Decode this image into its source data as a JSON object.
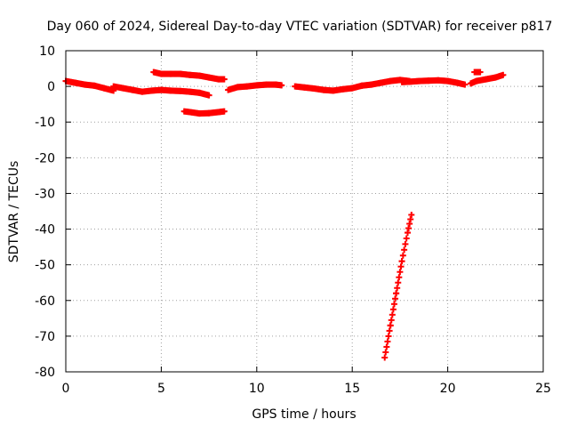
{
  "chart_data": {
    "type": "scatter",
    "title": "Day 060 of 2024, Sidereal Day-to-day VTEC variation (SDTVAR) for receiver p817",
    "xlabel": "GPS time / hours",
    "ylabel": "SDTVAR / TECUs",
    "xlim": [
      0,
      25
    ],
    "ylim": [
      -80,
      10
    ],
    "xticks": [
      "0",
      "5",
      "10",
      "15",
      "20",
      "25"
    ],
    "yticks": [
      "10",
      "0",
      "-10",
      "-20",
      "-30",
      "-40",
      "-50",
      "-60",
      "-70",
      "-80"
    ],
    "grid": true,
    "marker": "plus",
    "color": "#ff0000",
    "segments": [
      {
        "x": [
          0.0,
          0.5,
          1.0,
          1.5,
          2.0,
          2.5
        ],
        "y": [
          1.5,
          1.0,
          0.5,
          0.2,
          -0.5,
          -1.2
        ]
      },
      {
        "x": [
          2.5,
          3.0,
          3.5,
          4.0,
          4.5,
          5.0,
          5.5,
          6.0,
          6.5,
          7.0,
          7.5
        ],
        "y": [
          0.0,
          -0.5,
          -1.0,
          -1.5,
          -1.2,
          -1.0,
          -1.2,
          -1.3,
          -1.5,
          -1.8,
          -2.5
        ]
      },
      {
        "x": [
          4.6,
          5.0,
          5.5,
          6.0,
          6.5,
          7.0,
          7.5,
          8.0,
          8.3
        ],
        "y": [
          4.0,
          3.5,
          3.5,
          3.5,
          3.2,
          3.0,
          2.5,
          2.0,
          2.0
        ]
      },
      {
        "x": [
          6.2,
          6.5,
          7.0,
          7.5,
          8.0,
          8.3
        ],
        "y": [
          -7.0,
          -7.2,
          -7.6,
          -7.5,
          -7.2,
          -7.0
        ]
      },
      {
        "x": [
          8.5,
          9.0,
          9.5,
          10.0,
          10.5,
          11.0,
          11.3
        ],
        "y": [
          -1.0,
          -0.2,
          0.0,
          0.3,
          0.5,
          0.5,
          0.3
        ]
      },
      {
        "x": [
          12.0,
          12.5,
          13.0,
          13.5,
          14.0,
          14.5,
          15.0,
          15.5,
          16.0,
          16.5,
          17.0,
          17.5,
          18.0
        ],
        "y": [
          0.0,
          -0.3,
          -0.6,
          -1.0,
          -1.2,
          -0.8,
          -0.5,
          0.2,
          0.5,
          1.0,
          1.5,
          1.8,
          1.5
        ]
      },
      {
        "x": [
          16.7,
          17.0,
          17.3,
          17.6,
          17.9,
          18.1
        ],
        "y": [
          -76.0,
          -67.0,
          -58.0,
          -49.0,
          -41.0,
          -36.0
        ]
      },
      {
        "x": [
          17.6,
          18.0,
          18.5,
          19.0,
          19.5,
          20.0,
          20.5,
          20.9
        ],
        "y": [
          1.2,
          1.3,
          1.5,
          1.6,
          1.7,
          1.5,
          1.0,
          0.5
        ]
      },
      {
        "x": [
          21.2,
          21.5,
          22.0,
          22.5,
          22.9
        ],
        "y": [
          0.8,
          1.5,
          2.0,
          2.5,
          3.2
        ]
      },
      {
        "x": [
          21.4,
          21.7
        ],
        "y": [
          4.0,
          4.0
        ]
      }
    ]
  }
}
